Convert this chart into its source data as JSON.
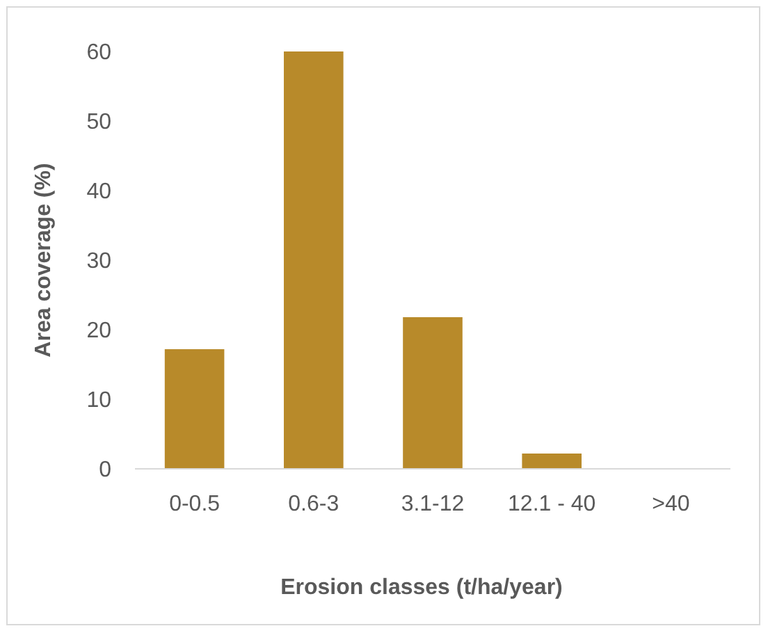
{
  "chart_data": {
    "type": "bar",
    "xlabel": "Erosion classes (t/ha/year)",
    "ylabel": "Area coverage (%)",
    "categories": [
      "0-0.5",
      "0.6-3",
      "3.1-12",
      "12.1 - 40",
      ">40"
    ],
    "values": [
      17.2,
      60,
      21.8,
      2.2,
      0
    ],
    "color": "#b88a2a",
    "ylim": [
      0,
      60
    ],
    "yticks": [
      0,
      10,
      20,
      30,
      40,
      50,
      60
    ],
    "grid": false
  }
}
